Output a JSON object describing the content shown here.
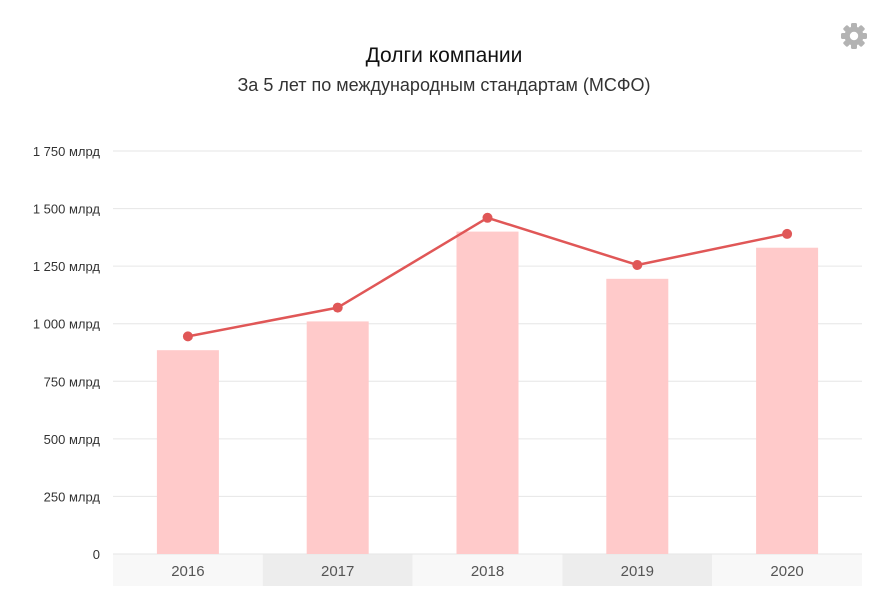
{
  "header": {
    "title": "Долги компании",
    "subtitle": "За 5 лет по международным стандартам (МСФО)"
  },
  "toolbar": {
    "settings_icon": "gear-icon"
  },
  "colors": {
    "bar": "#ffcaca",
    "line": "#e05757",
    "grid": "#e6e6e6",
    "band_light": "#f8f8f8",
    "band_dark": "#ededed",
    "icon": "#b3b3b3"
  },
  "chart_data": {
    "type": "bar",
    "categories": [
      "2016",
      "2017",
      "2018",
      "2019",
      "2020"
    ],
    "series": [
      {
        "type": "bar",
        "values": [
          885,
          1010,
          1400,
          1195,
          1330
        ]
      },
      {
        "type": "line",
        "values": [
          945,
          1070,
          1460,
          1255,
          1390
        ]
      }
    ],
    "ylim": [
      0,
      1750
    ],
    "yticks": [
      0,
      250,
      500,
      750,
      1000,
      1250,
      1500,
      1750
    ],
    "ytick_labels": [
      "0",
      "250 млрд",
      "500 млрд",
      "750 млрд",
      "1 000 млрд",
      "1 250 млрд",
      "1 500 млрд",
      "1 750 млрд"
    ],
    "grid": true,
    "legend": "none"
  }
}
